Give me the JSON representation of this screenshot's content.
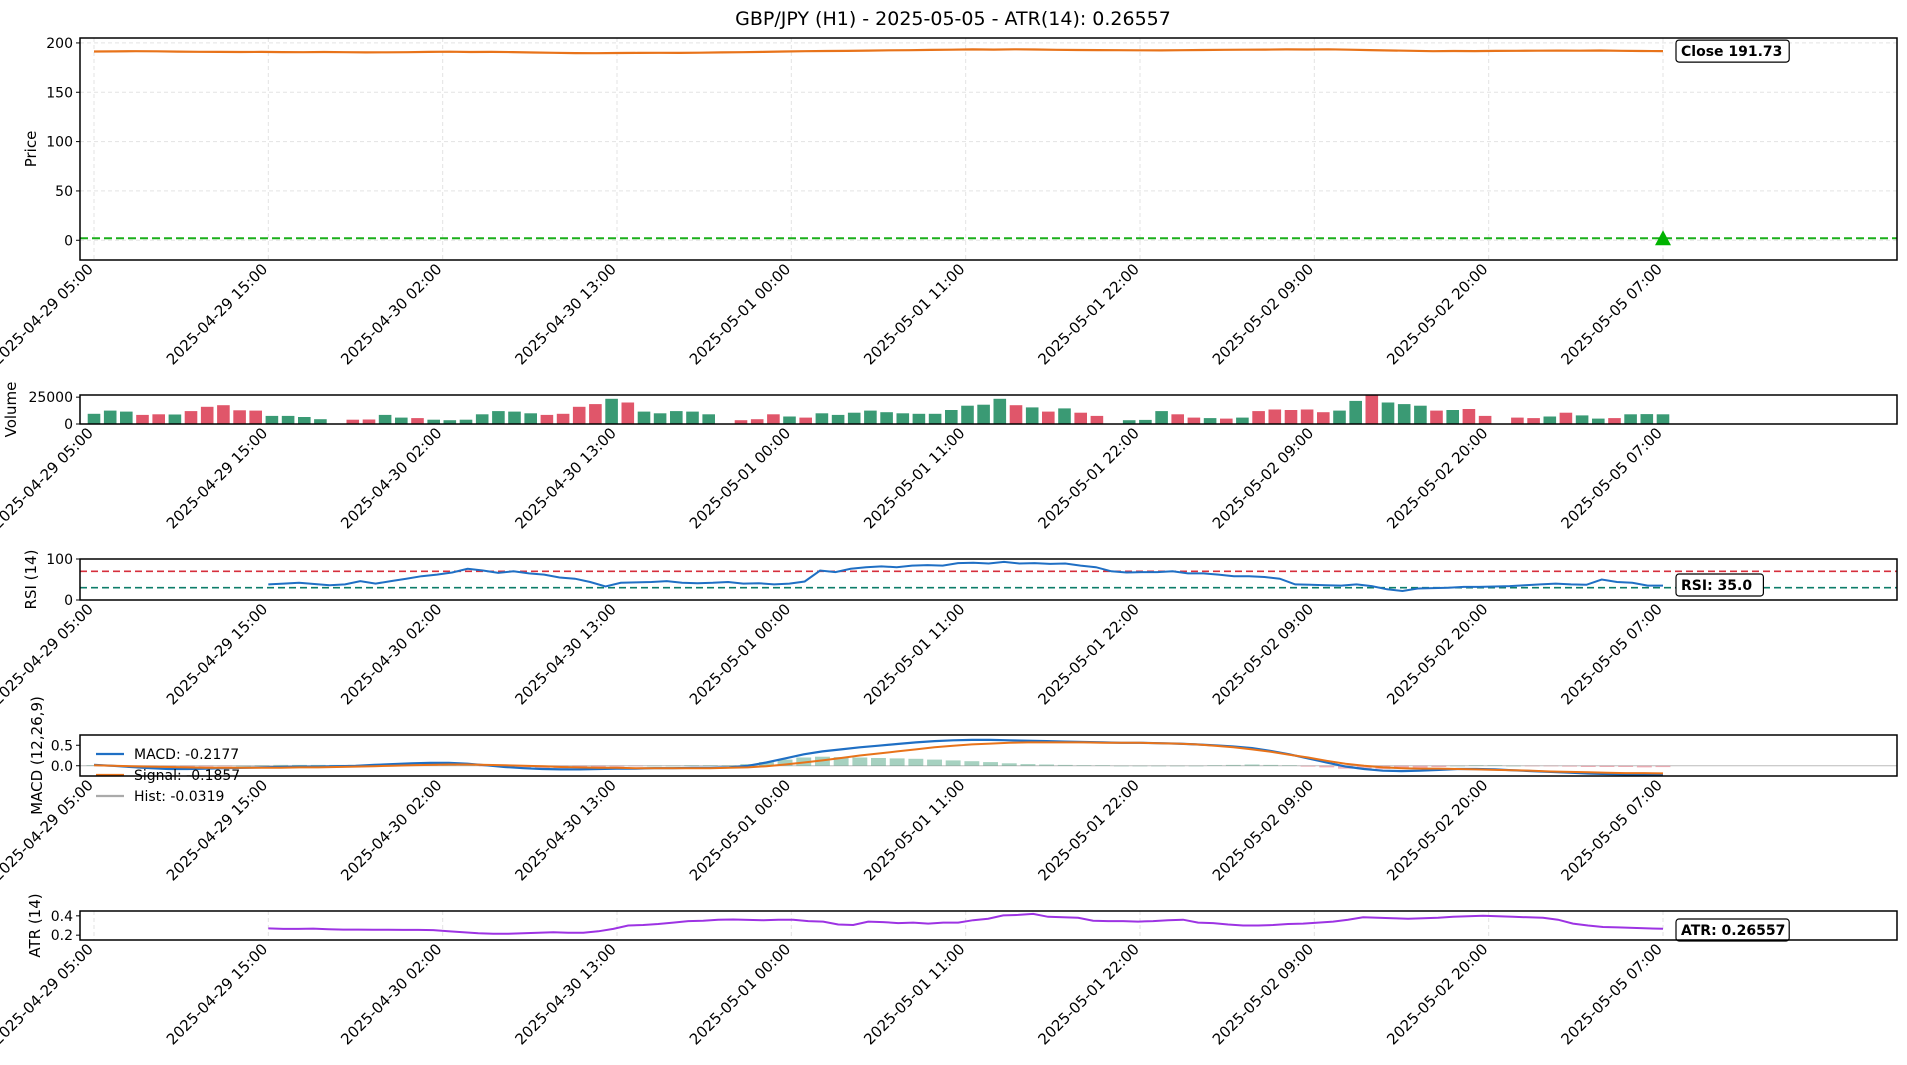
{
  "chart_data": {
    "type": "line",
    "title": "GBP/JPY (H1) - 2025-05-05 - ATR(14): 0.26557",
    "x_ticks": [
      "2025-04-29 05:00",
      "2025-04-29 15:00",
      "2025-04-30 02:00",
      "2025-04-30 13:00",
      "2025-05-01 00:00",
      "2025-05-01 11:00",
      "2025-05-01 22:00",
      "2025-05-02 09:00",
      "2025-05-02 20:00",
      "2025-05-05 07:00"
    ],
    "grid": true,
    "panels": {
      "price": {
        "ylabel": "Price",
        "yticks": [
          0,
          50,
          100,
          150,
          200
        ],
        "ylim": [
          -20,
          205
        ],
        "close_series": [
          191.3,
          191.4,
          191.6,
          191.5,
          191.2,
          191.0,
          190.9,
          190.8,
          190.9,
          190.7,
          190.6,
          190.8,
          190.6,
          190.4,
          190.5,
          190.6,
          190.9,
          191.1,
          190.8,
          190.9,
          190.7,
          190.3,
          190.0,
          189.7,
          189.6,
          189.8,
          189.9,
          190.0,
          189.9,
          190.1,
          190.4,
          190.6,
          190.9,
          191.3,
          191.6,
          191.8,
          191.9,
          192.2,
          192.5,
          192.6,
          192.9,
          193.1,
          193.4,
          193.2,
          193.5,
          193.3,
          193.0,
          192.8,
          192.7,
          192.6,
          192.5,
          192.4,
          192.6,
          192.8,
          193.0,
          193.1,
          193.2,
          193.4,
          193.3,
          193.5,
          193.1,
          192.7,
          192.3,
          192.0,
          191.6,
          191.8,
          191.7,
          191.9,
          192.0,
          192.1,
          192.2,
          192.1,
          192.3,
          192.0,
          191.8,
          191.73
        ],
        "close_label": "Close 191.73",
        "signal_level": 2,
        "signal_marker": "triangle-up",
        "colors": {
          "close": "#e8731a",
          "signal_line": "#1aaf1a",
          "marker": "#00b300"
        }
      },
      "volume": {
        "ylabel": "Volume",
        "yticks": [
          0,
          25000
        ],
        "ylim": [
          0,
          27000
        ],
        "values": [
          9500,
          12500,
          11500,
          8500,
          9000,
          8800,
          12000,
          16000,
          17500,
          12800,
          12500,
          7500,
          7500,
          6500,
          4500,
          0,
          4000,
          4200,
          8500,
          6000,
          5500,
          4000,
          3500,
          4000,
          9000,
          12000,
          11500,
          10000,
          8500,
          9500,
          16000,
          18500,
          23500,
          20000,
          11500,
          10000,
          12000,
          11500,
          9000,
          0,
          3500,
          4500,
          9000,
          7000,
          6000,
          10000,
          8500,
          10500,
          12500,
          11000,
          10000,
          9500,
          9500,
          13000,
          17000,
          18000,
          23500,
          17500,
          15500,
          11500,
          14500,
          10500,
          7500,
          0,
          3500,
          3800,
          12000,
          9000,
          6000,
          5500,
          5000,
          6000,
          12000,
          13500,
          13000,
          13500,
          11000,
          12500,
          21500,
          27000,
          20000,
          18500,
          17000,
          12500,
          13000,
          14000,
          7500,
          0,
          6000,
          5500,
          7000,
          10500,
          8000,
          5000,
          5500,
          9000,
          9200,
          9000
        ],
        "up": [
          1,
          1,
          1,
          0,
          0,
          1,
          0,
          0,
          0,
          0,
          0,
          1,
          1,
          1,
          1,
          1,
          0,
          0,
          1,
          1,
          0,
          1,
          1,
          1,
          1,
          1,
          1,
          1,
          0,
          0,
          0,
          0,
          1,
          0,
          1,
          1,
          1,
          1,
          1,
          1,
          0,
          0,
          0,
          1,
          0,
          1,
          1,
          1,
          1,
          1,
          1,
          1,
          1,
          1,
          1,
          1,
          1,
          0,
          1,
          0,
          1,
          0,
          0,
          1,
          1,
          1,
          1,
          0,
          0,
          1,
          0,
          1,
          0,
          0,
          0,
          0,
          0,
          1,
          1,
          0,
          1,
          1,
          1,
          0,
          1,
          0,
          0,
          1,
          0,
          0,
          1,
          0,
          1,
          1,
          0,
          1,
          1,
          1
        ],
        "colors": {
          "up": "#3a9a74",
          "down": "#e0566a"
        }
      },
      "rsi": {
        "ylabel": "RSI (14)",
        "yticks": [
          0,
          100
        ],
        "ylim": [
          0,
          100
        ],
        "overbought": 70,
        "oversold": 30,
        "values": [
          38,
          40,
          42,
          39,
          36,
          38,
          46,
          40,
          46,
          52,
          58,
          62,
          67,
          76,
          72,
          66,
          70,
          65,
          62,
          55,
          52,
          44,
          33,
          42,
          43,
          44,
          46,
          42,
          41,
          42,
          44,
          40,
          41,
          38,
          40,
          45,
          72,
          68,
          76,
          80,
          82,
          80,
          84,
          85,
          84,
          90,
          91,
          89,
          93,
          89,
          90,
          88,
          89,
          84,
          80,
          70,
          67,
          68,
          68,
          70,
          65,
          65,
          62,
          58,
          58,
          56,
          52,
          38,
          37,
          36,
          35,
          38,
          34,
          26,
          22,
          28,
          29,
          30,
          32,
          32,
          33,
          34,
          36,
          38,
          40,
          38,
          37,
          50,
          44,
          42,
          35,
          35.0
        ],
        "label": "RSI: 35.0",
        "colors": {
          "line": "#1f6fc4",
          "overbought": "#d62f3c",
          "oversold": "#0d7d6a"
        }
      },
      "macd": {
        "ylabel": "MACD (12,26,9)",
        "yticks": [
          0.0,
          0.5
        ],
        "ylim": [
          -0.25,
          0.75
        ],
        "macd": [
          0.02,
          0.0,
          -0.03,
          -0.06,
          -0.08,
          -0.08,
          -0.07,
          -0.06,
          -0.05,
          -0.04,
          -0.03,
          -0.02,
          -0.02,
          -0.01,
          0.0,
          0.02,
          0.04,
          0.06,
          0.07,
          0.07,
          0.05,
          0.01,
          -0.03,
          -0.06,
          -0.08,
          -0.09,
          -0.09,
          -0.08,
          -0.07,
          -0.07,
          -0.06,
          -0.06,
          -0.05,
          -0.05,
          -0.04,
          0.0,
          0.08,
          0.18,
          0.28,
          0.35,
          0.4,
          0.45,
          0.49,
          0.53,
          0.57,
          0.6,
          0.62,
          0.63,
          0.63,
          0.62,
          0.61,
          0.6,
          0.59,
          0.58,
          0.57,
          0.56,
          0.56,
          0.55,
          0.54,
          0.52,
          0.5,
          0.47,
          0.43,
          0.36,
          0.28,
          0.18,
          0.08,
          -0.02,
          -0.08,
          -0.12,
          -0.13,
          -0.12,
          -0.1,
          -0.08,
          -0.08,
          -0.09,
          -0.11,
          -0.13,
          -0.15,
          -0.17,
          -0.19,
          -0.2,
          -0.21,
          -0.22,
          -0.2177
        ],
        "signal": [
          0.01,
          0.0,
          -0.01,
          -0.02,
          -0.03,
          -0.04,
          -0.05,
          -0.05,
          -0.05,
          -0.05,
          -0.05,
          -0.04,
          -0.04,
          -0.03,
          -0.02,
          -0.01,
          0.0,
          0.01,
          0.02,
          0.03,
          0.03,
          0.02,
          0.01,
          0.0,
          -0.01,
          -0.03,
          -0.04,
          -0.05,
          -0.05,
          -0.06,
          -0.06,
          -0.06,
          -0.06,
          -0.06,
          -0.05,
          -0.04,
          -0.01,
          0.03,
          0.08,
          0.13,
          0.19,
          0.25,
          0.3,
          0.35,
          0.4,
          0.45,
          0.49,
          0.52,
          0.54,
          0.56,
          0.57,
          0.57,
          0.57,
          0.57,
          0.56,
          0.56,
          0.56,
          0.55,
          0.54,
          0.52,
          0.49,
          0.45,
          0.4,
          0.34,
          0.27,
          0.2,
          0.12,
          0.05,
          0.0,
          -0.04,
          -0.06,
          -0.07,
          -0.07,
          -0.08,
          -0.09,
          -0.1,
          -0.11,
          -0.12,
          -0.14,
          -0.15,
          -0.16,
          -0.17,
          -0.18,
          -0.18,
          -0.1857
        ],
        "hist_alpha": 0.45,
        "legend": [
          "MACD: -0.2177",
          "Signal: -0.1857",
          "Hist: -0.0319"
        ],
        "colors": {
          "macd": "#1f6fc4",
          "signal": "#e8731a",
          "hist_up": "#3a9a74",
          "hist_down": "#e0566a",
          "hist_legend": "#aaaaaa"
        }
      },
      "atr": {
        "ylabel": "ATR (14)",
        "yticks": [
          0.2,
          0.4
        ],
        "ylim": [
          0.15,
          0.45
        ],
        "values": [
          0.27,
          0.265,
          0.265,
          0.268,
          0.262,
          0.258,
          0.258,
          0.256,
          0.257,
          0.255,
          0.254,
          0.252,
          0.24,
          0.23,
          0.22,
          0.215,
          0.215,
          0.22,
          0.225,
          0.23,
          0.225,
          0.224,
          0.24,
          0.265,
          0.3,
          0.305,
          0.315,
          0.33,
          0.345,
          0.35,
          0.36,
          0.362,
          0.358,
          0.355,
          0.36,
          0.36,
          0.345,
          0.34,
          0.31,
          0.305,
          0.34,
          0.335,
          0.325,
          0.33,
          0.32,
          0.33,
          0.33,
          0.355,
          0.37,
          0.405,
          0.41,
          0.42,
          0.39,
          0.385,
          0.38,
          0.35,
          0.345,
          0.345,
          0.34,
          0.345,
          0.355,
          0.36,
          0.33,
          0.325,
          0.31,
          0.3,
          0.3,
          0.305,
          0.315,
          0.32,
          0.33,
          0.34,
          0.36,
          0.385,
          0.38,
          0.375,
          0.37,
          0.375,
          0.38,
          0.39,
          0.395,
          0.4,
          0.395,
          0.39,
          0.385,
          0.38,
          0.36,
          0.32,
          0.3,
          0.285,
          0.28,
          0.275,
          0.27,
          0.26557
        ],
        "label": "ATR: 0.26557",
        "colors": {
          "line": "#9d33e3"
        }
      }
    }
  }
}
